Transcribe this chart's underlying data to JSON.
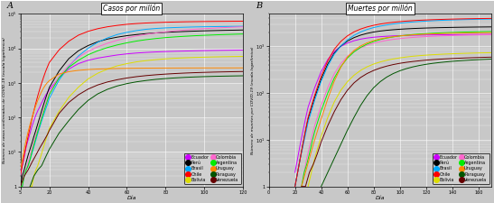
{
  "title_A": "Casos por millón",
  "title_B": "Muertes por millón",
  "label_A": "A",
  "label_B": "B",
  "ylabel_A": "Número de casos confirmados de COVID-19 (escala logarítmica)",
  "ylabel_B": "Número de muertes por COVID-19 (escala logarítmica)",
  "xlabel": "Día",
  "countries": [
    "Ecuador",
    "Perú",
    "Brasil",
    "Chile",
    "Bolivia",
    "Colombia",
    "Argentina",
    "Uruguay",
    "Paraguay",
    "Venezuela"
  ],
  "colors": {
    "Ecuador": "#cc00ff",
    "Perú": "#000000",
    "Brasil": "#00aaff",
    "Chile": "#ff0000",
    "Bolivia": "#dddd00",
    "Colombia": "#ff66cc",
    "Argentina": "#00ee00",
    "Uruguay": "#ff8800",
    "Paraguay": "#005500",
    "Venezuela": "#660000"
  },
  "cases_data": {
    "Ecuador": {
      "x": [
        5,
        6,
        7,
        8,
        9,
        10,
        11,
        12,
        13,
        14,
        15,
        16,
        17,
        18,
        19,
        20,
        25,
        30,
        35,
        40,
        45,
        50,
        55,
        60,
        65,
        70,
        75,
        80,
        85,
        90,
        95,
        100,
        105,
        110,
        115,
        120
      ],
      "y": [
        2,
        4,
        7,
        14,
        22,
        35,
        55,
        80,
        115,
        155,
        200,
        265,
        340,
        430,
        530,
        640,
        1400,
        2500,
        3600,
        4500,
        5200,
        5800,
        6400,
        6900,
        7300,
        7600,
        7850,
        8050,
        8200,
        8330,
        8450,
        8560,
        8650,
        8730,
        8800,
        8860
      ]
    },
    "Perú": {
      "x": [
        5,
        6,
        7,
        8,
        9,
        10,
        11,
        12,
        13,
        14,
        15,
        16,
        17,
        18,
        19,
        20,
        25,
        30,
        35,
        40,
        45,
        50,
        55,
        60,
        65,
        70,
        75,
        80,
        85,
        90,
        95,
        100,
        105,
        110,
        115,
        120
      ],
      "y": [
        1,
        2,
        3,
        5,
        8,
        12,
        18,
        28,
        42,
        65,
        100,
        155,
        235,
        350,
        510,
        740,
        2200,
        5000,
        8500,
        12000,
        15500,
        18500,
        21000,
        23200,
        25000,
        26600,
        27900,
        29000,
        29900,
        30700,
        31400,
        32000,
        32500,
        33000,
        33400,
        33800
      ]
    },
    "Brasil": {
      "x": [
        5,
        6,
        7,
        8,
        9,
        10,
        11,
        12,
        13,
        14,
        15,
        16,
        17,
        18,
        19,
        20,
        25,
        30,
        35,
        40,
        45,
        50,
        55,
        60,
        65,
        70,
        75,
        80,
        85,
        90,
        95,
        100,
        105,
        110,
        115,
        120
      ],
      "y": [
        1,
        1,
        2,
        3,
        4,
        6,
        9,
        14,
        22,
        34,
        52,
        78,
        115,
        168,
        240,
        360,
        1200,
        3000,
        6000,
        10000,
        15000,
        20000,
        25000,
        29000,
        32500,
        35500,
        37500,
        39000,
        40000,
        40800,
        41500,
        42000,
        42400,
        42800,
        43100,
        43400
      ]
    },
    "Chile": {
      "x": [
        5,
        6,
        7,
        8,
        9,
        10,
        11,
        12,
        13,
        14,
        15,
        16,
        17,
        18,
        19,
        20,
        25,
        30,
        35,
        40,
        45,
        50,
        55,
        60,
        65,
        70,
        75,
        80,
        85,
        90,
        95,
        100,
        105,
        110,
        115,
        120
      ],
      "y": [
        2,
        4,
        8,
        15,
        28,
        50,
        90,
        155,
        260,
        420,
        650,
        980,
        1450,
        2100,
        2900,
        3900,
        9000,
        16000,
        24000,
        31000,
        37000,
        42000,
        46000,
        49500,
        52000,
        54000,
        55500,
        56800,
        57700,
        58500,
        59100,
        59600,
        60000,
        60300,
        60600,
        60800
      ]
    },
    "Bolivia": {
      "x": [
        10,
        11,
        12,
        13,
        14,
        15,
        16,
        17,
        18,
        19,
        20,
        25,
        30,
        35,
        40,
        45,
        50,
        55,
        60,
        65,
        70,
        75,
        80,
        85,
        90,
        95,
        100,
        105,
        110,
        115,
        120
      ],
      "y": [
        1,
        1,
        2,
        3,
        4,
        6,
        9,
        14,
        21,
        32,
        48,
        150,
        380,
        750,
        1300,
        1900,
        2500,
        3100,
        3600,
        4050,
        4400,
        4700,
        4950,
        5150,
        5300,
        5430,
        5540,
        5630,
        5710,
        5780,
        5840
      ]
    },
    "Colombia": {
      "x": [
        5,
        6,
        7,
        8,
        9,
        10,
        11,
        12,
        13,
        14,
        15,
        16,
        17,
        18,
        19,
        20,
        25,
        30,
        35,
        40,
        45,
        50,
        55,
        60,
        65,
        70,
        75,
        80,
        85,
        90,
        95,
        100,
        105,
        110,
        115,
        120
      ],
      "y": [
        1,
        1,
        2,
        3,
        5,
        8,
        12,
        19,
        29,
        45,
        69,
        106,
        161,
        240,
        355,
        520,
        1500,
        3200,
        5500,
        8200,
        11000,
        14000,
        17000,
        20000,
        22800,
        25400,
        27800,
        30000,
        32000,
        33800,
        35500,
        37000,
        38400,
        39700,
        40900,
        42000
      ]
    },
    "Argentina": {
      "x": [
        5,
        6,
        7,
        8,
        9,
        10,
        11,
        12,
        13,
        14,
        15,
        16,
        17,
        18,
        19,
        20,
        25,
        30,
        35,
        40,
        45,
        50,
        55,
        60,
        65,
        70,
        75,
        80,
        85,
        90,
        95,
        100,
        105,
        110,
        115,
        120
      ],
      "y": [
        1,
        1,
        2,
        3,
        4,
        6,
        10,
        16,
        25,
        39,
        60,
        92,
        140,
        210,
        310,
        460,
        1400,
        2800,
        4500,
        6500,
        8500,
        10500,
        12500,
        14400,
        16200,
        17800,
        19200,
        20400,
        21400,
        22300,
        23100,
        23800,
        24400,
        25000,
        25500,
        26000
      ]
    },
    "Uruguay": {
      "x": [
        5,
        6,
        7,
        8,
        9,
        10,
        11,
        12,
        13,
        14,
        15,
        16,
        17,
        18,
        19,
        20,
        25,
        30,
        35,
        40,
        45,
        50,
        55,
        60,
        65,
        70,
        75,
        80,
        85,
        90,
        95,
        100,
        105,
        110,
        115,
        120
      ],
      "y": [
        3,
        6,
        12,
        22,
        38,
        62,
        98,
        150,
        220,
        310,
        425,
        560,
        710,
        870,
        1020,
        1160,
        1800,
        2100,
        2300,
        2430,
        2510,
        2560,
        2600,
        2630,
        2650,
        2665,
        2675,
        2683,
        2690,
        2696,
        2701,
        2705,
        2708,
        2711,
        2714,
        2716
      ]
    },
    "Paraguay": {
      "x": [
        10,
        12,
        14,
        16,
        18,
        20,
        25,
        30,
        35,
        40,
        45,
        50,
        55,
        60,
        65,
        70,
        75,
        80,
        85,
        90,
        95,
        100,
        105,
        110,
        115,
        120
      ],
      "y": [
        1,
        2,
        3,
        4,
        7,
        12,
        35,
        80,
        170,
        310,
        480,
        650,
        810,
        950,
        1070,
        1170,
        1260,
        1330,
        1390,
        1440,
        1480,
        1513,
        1540,
        1563,
        1582,
        1599
      ]
    },
    "Venezuela": {
      "x": [
        5,
        7,
        9,
        11,
        13,
        15,
        17,
        19,
        20,
        25,
        30,
        35,
        40,
        45,
        50,
        55,
        60,
        65,
        70,
        75,
        80,
        85,
        90,
        95,
        100,
        105,
        110,
        115,
        120
      ],
      "y": [
        1,
        2,
        3,
        5,
        8,
        13,
        20,
        32,
        42,
        130,
        270,
        450,
        660,
        870,
        1060,
        1230,
        1380,
        1510,
        1620,
        1710,
        1790,
        1860,
        1920,
        1970,
        2010,
        2045,
        2075,
        2102,
        2125
      ]
    }
  },
  "deaths_data": {
    "Ecuador": {
      "x": [
        20,
        22,
        24,
        26,
        28,
        30,
        35,
        40,
        45,
        50,
        55,
        60,
        65,
        70,
        75,
        80,
        85,
        90,
        95,
        100,
        105,
        110,
        115,
        120,
        125,
        130,
        135,
        140,
        145,
        150,
        155,
        160,
        165,
        170
      ],
      "y": [
        2,
        4,
        8,
        15,
        28,
        50,
        130,
        290,
        520,
        780,
        1000,
        1180,
        1320,
        1430,
        1510,
        1570,
        1615,
        1650,
        1678,
        1700,
        1718,
        1733,
        1745,
        1756,
        1765,
        1773,
        1780,
        1786,
        1791,
        1796,
        1800,
        1804,
        1807,
        1810
      ]
    },
    "Perú": {
      "x": [
        20,
        22,
        24,
        26,
        28,
        30,
        35,
        40,
        45,
        50,
        55,
        60,
        65,
        70,
        75,
        80,
        85,
        90,
        95,
        100,
        105,
        110,
        115,
        120,
        125,
        130,
        135,
        140,
        145,
        150,
        155,
        160,
        165,
        170
      ],
      "y": [
        1,
        2,
        4,
        8,
        15,
        28,
        80,
        200,
        420,
        720,
        1020,
        1300,
        1540,
        1740,
        1900,
        2030,
        2130,
        2210,
        2275,
        2330,
        2375,
        2413,
        2445,
        2473,
        2497,
        2518,
        2536,
        2552,
        2566,
        2578,
        2589,
        2599,
        2607,
        2615
      ]
    },
    "Brasil": {
      "x": [
        20,
        22,
        24,
        26,
        28,
        30,
        35,
        40,
        45,
        50,
        55,
        60,
        65,
        70,
        75,
        80,
        85,
        90,
        95,
        100,
        105,
        110,
        115,
        120,
        125,
        130,
        135,
        140,
        145,
        150,
        155,
        160,
        165,
        170
      ],
      "y": [
        1,
        2,
        4,
        7,
        13,
        24,
        70,
        180,
        380,
        680,
        1020,
        1380,
        1720,
        2030,
        2300,
        2530,
        2720,
        2880,
        3020,
        3140,
        3245,
        3335,
        3413,
        3482,
        3542,
        3595,
        3642,
        3684,
        3721,
        3754,
        3784,
        3811,
        3835,
        3857
      ]
    },
    "Chile": {
      "x": [
        20,
        22,
        24,
        26,
        28,
        30,
        35,
        40,
        45,
        50,
        55,
        60,
        65,
        70,
        75,
        80,
        85,
        90,
        95,
        100,
        105,
        110,
        115,
        120,
        125,
        130,
        135,
        140,
        145,
        150,
        155,
        160,
        165,
        170
      ],
      "y": [
        1,
        2,
        4,
        8,
        16,
        30,
        90,
        230,
        490,
        870,
        1280,
        1680,
        2040,
        2350,
        2610,
        2830,
        3010,
        3160,
        3285,
        3390,
        3480,
        3557,
        3623,
        3680,
        3729,
        3772,
        3810,
        3843,
        3873,
        3899,
        3922,
        3943,
        3962,
        3979
      ]
    },
    "Bolivia": {
      "x": [
        30,
        35,
        40,
        45,
        50,
        55,
        60,
        65,
        70,
        75,
        80,
        85,
        90,
        95,
        100,
        105,
        110,
        115,
        120,
        125,
        130,
        135,
        140,
        145,
        150,
        155,
        160,
        165,
        170
      ],
      "y": [
        1,
        4,
        12,
        30,
        65,
        115,
        175,
        240,
        305,
        365,
        418,
        464,
        504,
        538,
        568,
        593,
        615,
        633,
        649,
        663,
        675,
        686,
        695,
        703,
        710,
        717,
        723,
        728,
        733
      ]
    },
    "Colombia": {
      "x": [
        25,
        27,
        29,
        31,
        33,
        35,
        40,
        45,
        50,
        55,
        60,
        65,
        70,
        75,
        80,
        85,
        90,
        95,
        100,
        105,
        110,
        115,
        120,
        125,
        130,
        135,
        140,
        145,
        150,
        155,
        160,
        165,
        170
      ],
      "y": [
        1,
        2,
        4,
        7,
        12,
        20,
        55,
        130,
        260,
        430,
        610,
        780,
        930,
        1060,
        1170,
        1265,
        1345,
        1412,
        1468,
        1516,
        1557,
        1592,
        1622,
        1648,
        1671,
        1691,
        1709,
        1724,
        1738,
        1750,
        1761,
        1771,
        1780
      ]
    },
    "Argentina": {
      "x": [
        25,
        27,
        29,
        31,
        33,
        35,
        40,
        45,
        50,
        55,
        60,
        65,
        70,
        75,
        80,
        85,
        90,
        95,
        100,
        105,
        110,
        115,
        120,
        125,
        130,
        135,
        140,
        145,
        150,
        155,
        160,
        165,
        170
      ],
      "y": [
        1,
        2,
        3,
        5,
        9,
        15,
        42,
        100,
        210,
        370,
        560,
        760,
        950,
        1120,
        1270,
        1400,
        1510,
        1600,
        1676,
        1740,
        1794,
        1840,
        1879,
        1913,
        1943,
        1969,
        1991,
        2011,
        2028,
        2044,
        2058,
        2070,
        2081
      ]
    },
    "Uruguay": {
      "x": [
        25,
        28,
        31,
        34,
        37,
        40,
        45,
        50,
        55,
        60,
        65,
        70,
        75,
        80,
        85,
        90,
        95,
        100,
        105,
        110,
        115,
        120,
        125,
        130,
        135,
        140,
        145,
        150,
        155,
        160,
        165,
        170
      ],
      "y": [
        1,
        2,
        4,
        8,
        15,
        28,
        75,
        180,
        360,
        590,
        820,
        1020,
        1190,
        1330,
        1445,
        1535,
        1610,
        1672,
        1723,
        1765,
        1800,
        1829,
        1854,
        1875,
        1893,
        1908,
        1921,
        1933,
        1943,
        1952,
        1960,
        1967
      ]
    },
    "Paraguay": {
      "x": [
        40,
        45,
        50,
        55,
        60,
        65,
        70,
        75,
        80,
        85,
        90,
        95,
        100,
        105,
        110,
        115,
        120,
        125,
        130,
        135,
        140,
        145,
        150,
        155,
        160,
        165,
        170
      ],
      "y": [
        1,
        2,
        4,
        8,
        16,
        30,
        54,
        88,
        130,
        175,
        220,
        262,
        300,
        334,
        364,
        390,
        413,
        433,
        450,
        465,
        479,
        491,
        501,
        511,
        519,
        527,
        534
      ]
    },
    "Venezuela": {
      "x": [
        25,
        28,
        31,
        34,
        37,
        40,
        45,
        50,
        55,
        60,
        65,
        70,
        75,
        80,
        85,
        90,
        95,
        100,
        105,
        110,
        115,
        120,
        125,
        130,
        135,
        140,
        145,
        150,
        155,
        160,
        165,
        170
      ],
      "y": [
        1,
        1,
        2,
        3,
        5,
        9,
        20,
        40,
        72,
        115,
        165,
        215,
        262,
        305,
        344,
        378,
        408,
        434,
        456,
        475,
        492,
        507,
        520,
        531,
        541,
        550,
        558,
        566,
        572,
        578,
        584,
        589
      ]
    }
  },
  "background_color": "#c8c8c8",
  "grid_color": "#ffffff",
  "ylim_cases": [
    1,
    100000
  ],
  "ylim_deaths": [
    1,
    5000
  ],
  "xlim_cases": [
    5,
    120
  ],
  "xlim_deaths": [
    0,
    170
  ],
  "yticks_cases": [
    1,
    10,
    100,
    1000,
    10000,
    100000
  ],
  "yticks_deaths": [
    1,
    10,
    100,
    1000
  ],
  "xticks_cases": [
    5,
    20,
    40,
    60,
    80,
    100,
    120
  ],
  "xticks_deaths": [
    0,
    20,
    40,
    60,
    80,
    100,
    120,
    140,
    160
  ],
  "xtick_labels_cases": [
    "5",
    "20",
    "40",
    "60",
    "80",
    "100",
    "120"
  ],
  "xtick_labels_deaths": [
    "0",
    "20",
    "40",
    "60",
    "80",
    "100",
    "120",
    "140",
    "160"
  ]
}
